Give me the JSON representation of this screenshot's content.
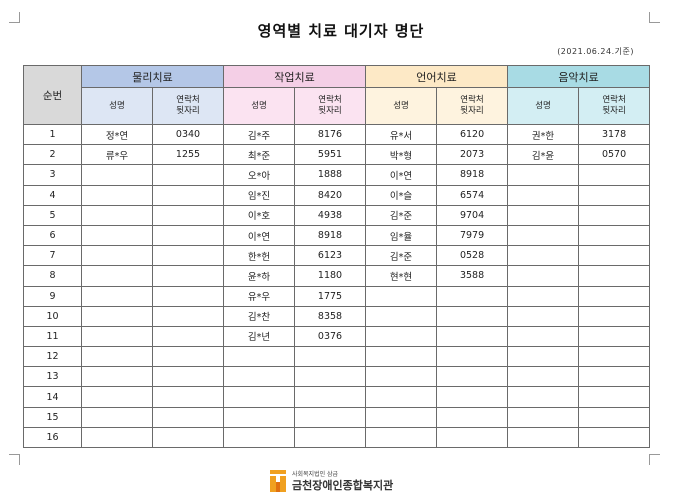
{
  "document": {
    "title": "영역별 치료 대기자 명단",
    "date": "(2021.06.24.기준)"
  },
  "table": {
    "no_header": "순번",
    "groups": [
      {
        "name": "물리치료",
        "name_col": "성명",
        "contact_col_l1": "연락처",
        "contact_col_l2": "뒷자리"
      },
      {
        "name": "작업치료",
        "name_col": "성명",
        "contact_col_l1": "연락처",
        "contact_col_l2": "뒷자리"
      },
      {
        "name": "언어치료",
        "name_col": "성명",
        "contact_col_l1": "연락처",
        "contact_col_l2": "뒷자리"
      },
      {
        "name": "음악치료",
        "name_col": "성명",
        "contact_col_l1": "연락처",
        "contact_col_l2": "뒷자리"
      }
    ],
    "rows": [
      [
        "1",
        "정*연",
        "0340",
        "김*주",
        "8176",
        "유*서",
        "6120",
        "권*한",
        "3178"
      ],
      [
        "2",
        "류*우",
        "1255",
        "최*준",
        "5951",
        "박*형",
        "2073",
        "김*윤",
        "0570"
      ],
      [
        "3",
        "",
        "",
        "오*아",
        "1888",
        "이*연",
        "8918",
        "",
        ""
      ],
      [
        "4",
        "",
        "",
        "임*진",
        "8420",
        "이*슬",
        "6574",
        "",
        ""
      ],
      [
        "5",
        "",
        "",
        "이*호",
        "4938",
        "김*준",
        "9704",
        "",
        ""
      ],
      [
        "6",
        "",
        "",
        "이*연",
        "8918",
        "임*율",
        "7979",
        "",
        ""
      ],
      [
        "7",
        "",
        "",
        "한*헌",
        "6123",
        "김*준",
        "0528",
        "",
        ""
      ],
      [
        "8",
        "",
        "",
        "윤*하",
        "1180",
        "현*현",
        "3588",
        "",
        ""
      ],
      [
        "9",
        "",
        "",
        "유*우",
        "1775",
        "",
        "",
        "",
        ""
      ],
      [
        "10",
        "",
        "",
        "김*찬",
        "8358",
        "",
        "",
        "",
        ""
      ],
      [
        "11",
        "",
        "",
        "김*년",
        "0376",
        "",
        "",
        "",
        ""
      ],
      [
        "12",
        "",
        "",
        "",
        "",
        "",
        "",
        "",
        ""
      ],
      [
        "13",
        "",
        "",
        "",
        "",
        "",
        "",
        "",
        ""
      ],
      [
        "14",
        "",
        "",
        "",
        "",
        "",
        "",
        "",
        ""
      ],
      [
        "15",
        "",
        "",
        "",
        "",
        "",
        "",
        "",
        ""
      ],
      [
        "16",
        "",
        "",
        "",
        "",
        "",
        "",
        "",
        ""
      ]
    ]
  },
  "footer": {
    "org_small": "사회복지법인 삼급",
    "org_name": "금천장애인종합복지관",
    "logo_icon": "house-logo-icon",
    "logo_color": "#f0a020"
  },
  "colors": {
    "physical": "#b4c7e7",
    "occupational": "#f4cfe6",
    "language": "#fde9c6",
    "music": "#a8dbe4",
    "number_col": "#d9d9d9"
  }
}
